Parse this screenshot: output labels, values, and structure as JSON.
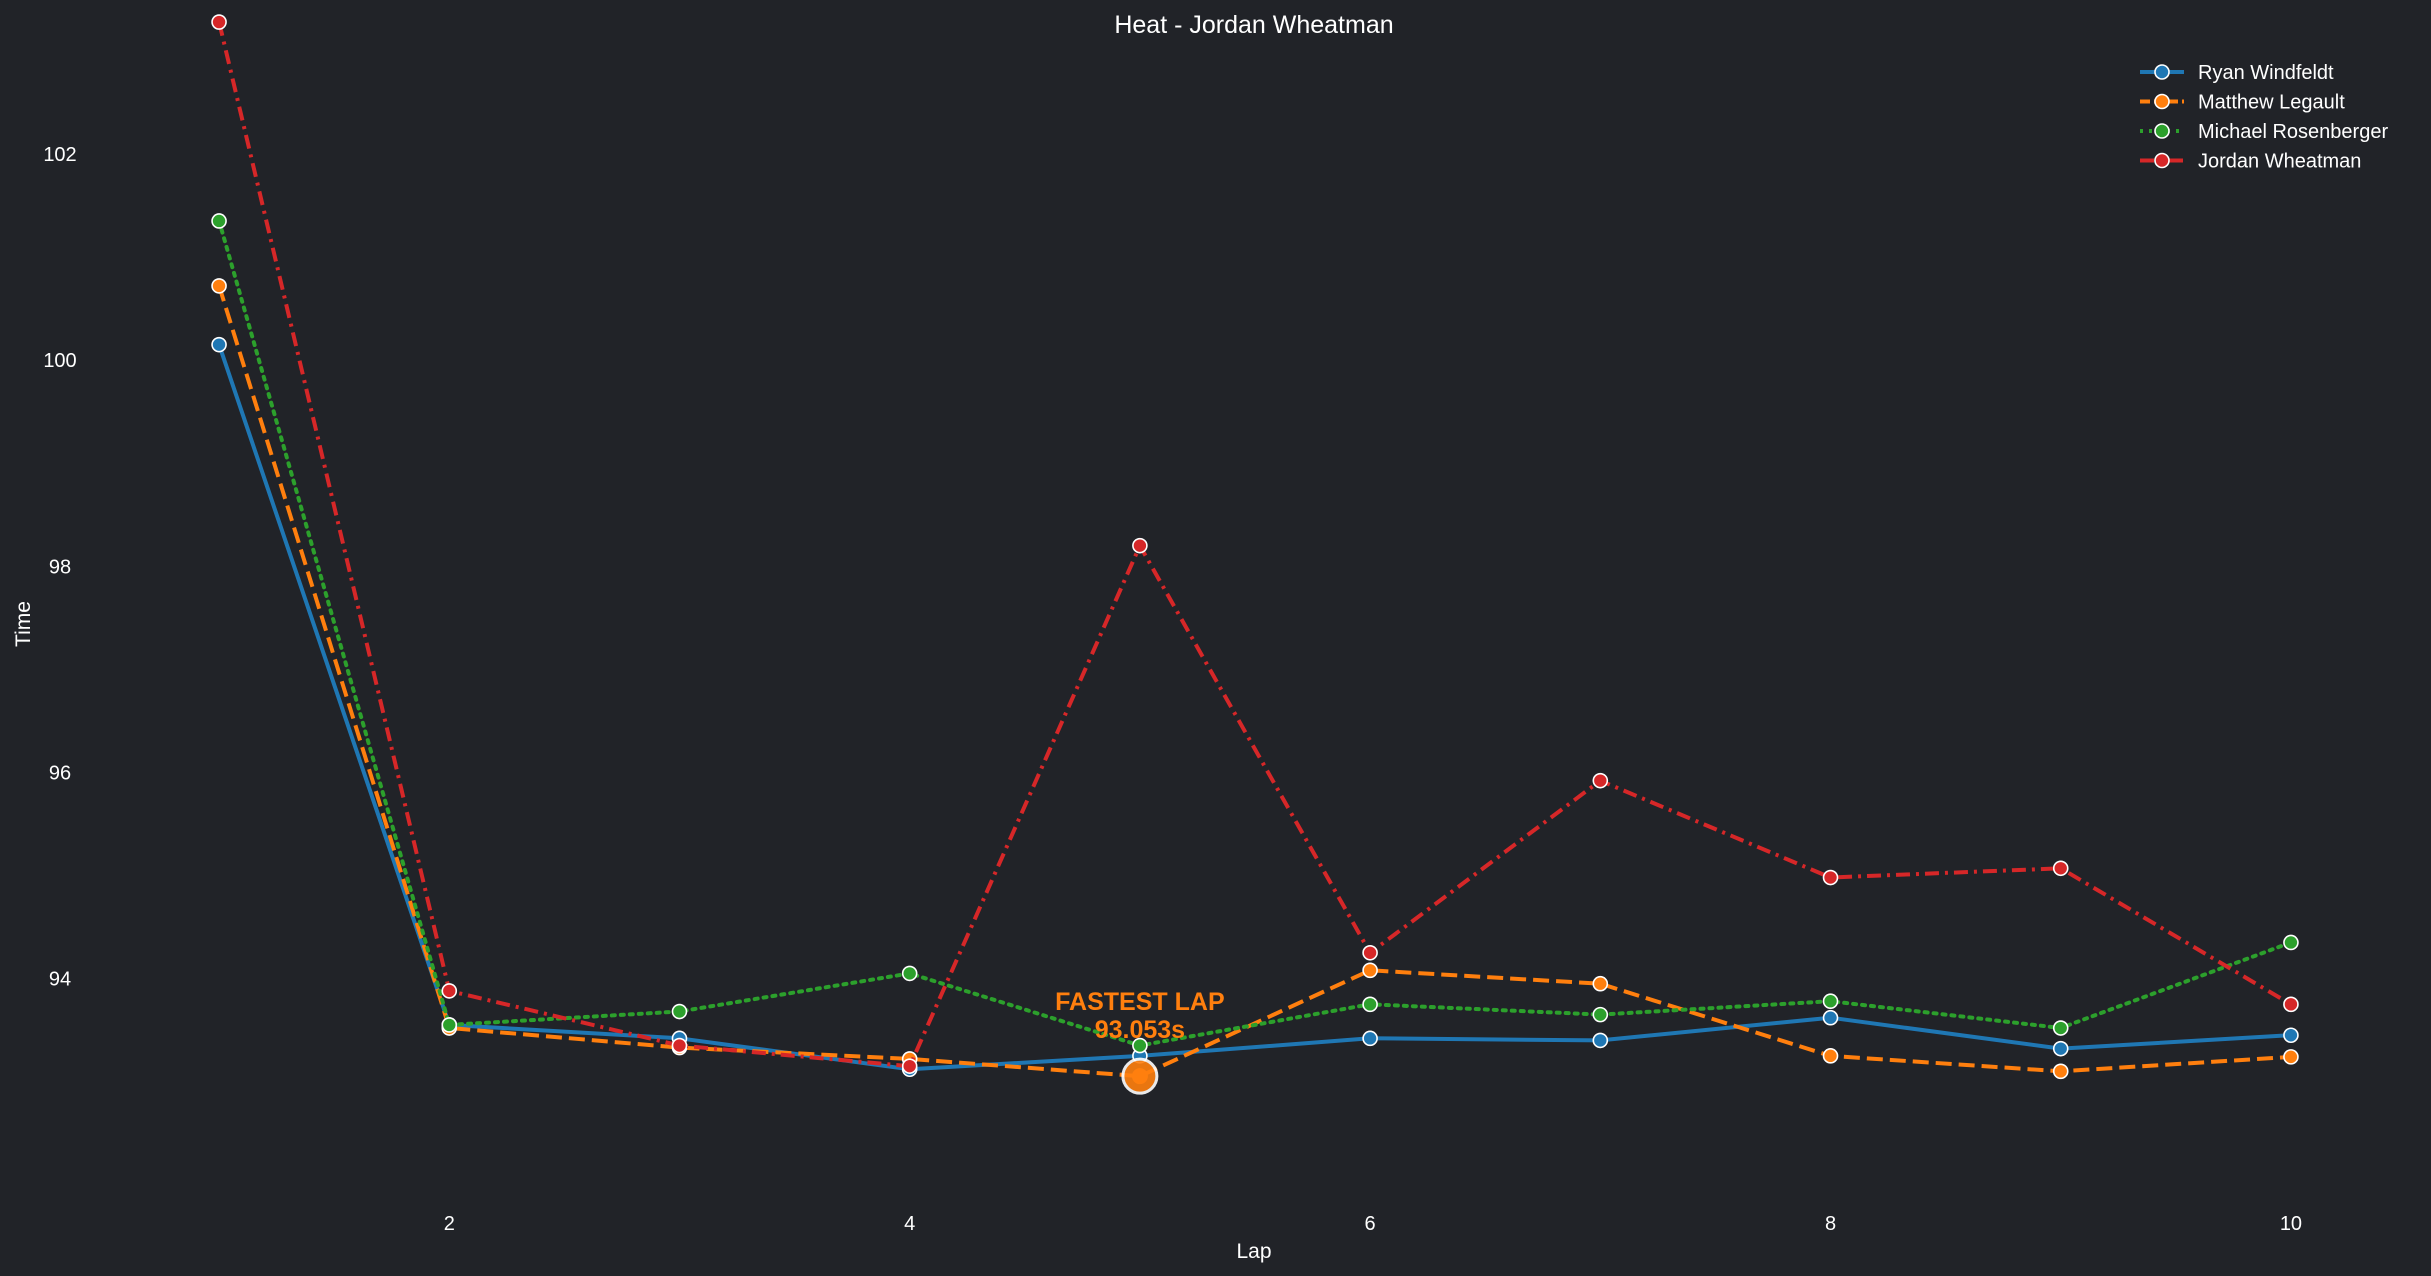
{
  "chart_data": {
    "type": "line",
    "title": "Heat - Jordan Wheatman",
    "xlabel": "Lap",
    "ylabel": "Time",
    "x": [
      1,
      2,
      3,
      4,
      5,
      6,
      7,
      8,
      9,
      10
    ],
    "xlim": [
      0.7,
      10.3
    ],
    "ylim": [
      91.9,
      103.3
    ],
    "xticks": [
      2,
      4,
      6,
      8,
      10
    ],
    "yticks": [
      94,
      96,
      98,
      100,
      102
    ],
    "grid": false,
    "legend_position": "top-right",
    "series": [
      {
        "name": "Ryan Windfeldt",
        "color": "#1f77b4",
        "line_style": "solid",
        "values": [
          100.15,
          93.55,
          93.42,
          93.12,
          93.25,
          93.42,
          93.4,
          93.62,
          93.32,
          93.45
        ]
      },
      {
        "name": "Matthew Legault",
        "color": "#ff7f0e",
        "line_style": "dashed",
        "values": [
          100.72,
          93.52,
          93.33,
          93.22,
          93.053,
          94.08,
          93.95,
          93.25,
          93.1,
          93.24
        ]
      },
      {
        "name": "Michael Rosenberger",
        "color": "#2ca02c",
        "line_style": "dotted",
        "values": [
          101.35,
          93.55,
          93.68,
          94.05,
          93.35,
          93.75,
          93.65,
          93.78,
          93.52,
          94.35
        ]
      },
      {
        "name": "Jordan Wheatman",
        "color": "#d62728",
        "line_style": "dashdot",
        "values": [
          103.28,
          93.88,
          93.35,
          93.15,
          98.2,
          94.25,
          95.92,
          94.98,
          95.07,
          93.75
        ]
      }
    ],
    "annotation": {
      "line1": "FASTEST LAP",
      "line2": "93.053s",
      "series": "Matthew Legault",
      "x": 5,
      "y": 93.053,
      "color": "#ff7f0e"
    }
  }
}
